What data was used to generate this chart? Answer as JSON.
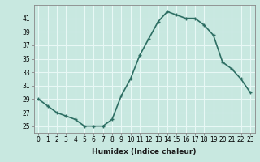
{
  "x": [
    0,
    1,
    2,
    3,
    4,
    5,
    6,
    7,
    8,
    9,
    10,
    11,
    12,
    13,
    14,
    15,
    16,
    17,
    18,
    19,
    20,
    21,
    22,
    23
  ],
  "y": [
    29,
    28,
    27,
    26.5,
    26,
    25,
    25,
    25,
    26,
    29.5,
    32,
    35.5,
    38,
    40.5,
    42,
    41.5,
    41,
    41,
    40,
    38.5,
    34.5,
    33.5,
    32,
    30
  ],
  "line_color": "#2d6e63",
  "marker": "+",
  "bg_color": "#c8e8e0",
  "grid_color": "#e8f8f5",
  "xlabel": "Humidex (Indice chaleur)",
  "ylim": [
    24,
    43
  ],
  "xlim": [
    -0.5,
    23.5
  ],
  "yticks": [
    25,
    27,
    29,
    31,
    33,
    35,
    37,
    39,
    41
  ],
  "xticks": [
    0,
    1,
    2,
    3,
    4,
    5,
    6,
    7,
    8,
    9,
    10,
    11,
    12,
    13,
    14,
    15,
    16,
    17,
    18,
    19,
    20,
    21,
    22,
    23
  ],
  "xtick_labels": [
    "0",
    "1",
    "2",
    "3",
    "4",
    "5",
    "6",
    "7",
    "8",
    "9",
    "10",
    "11",
    "12",
    "13",
    "14",
    "15",
    "16",
    "17",
    "18",
    "19",
    "20",
    "21",
    "22",
    "23"
  ],
  "label_fontsize": 6.5,
  "tick_fontsize": 5.5,
  "linewidth": 1.2,
  "markersize": 3.5,
  "markeredgewidth": 1.0
}
